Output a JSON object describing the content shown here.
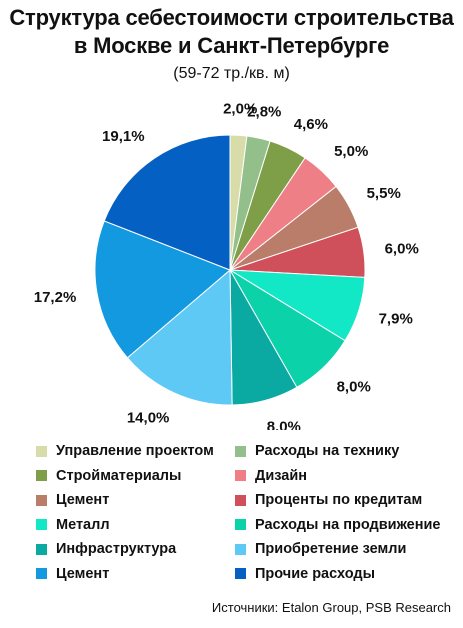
{
  "chart_data": {
    "type": "pie",
    "title_line1": "Структура себестоимости строительства",
    "title_line2": "в Москве и Санкт-Петербурге",
    "subtitle": "(59-72 тр./кв. м)",
    "slices": [
      {
        "label": "Управление проектом",
        "value": 2.0,
        "display": "2,0%",
        "color": "#d7dca8"
      },
      {
        "label": "Расходы на технику",
        "value": 2.8,
        "display": "2,8%",
        "color": "#93c08a"
      },
      {
        "label": "Стройматериалы",
        "value": 4.6,
        "display": "4,6%",
        "color": "#7e9e47"
      },
      {
        "label": "Дизайн",
        "value": 5.0,
        "display": "5,0%",
        "color": "#ee7f86"
      },
      {
        "label": "Цемент",
        "value": 5.5,
        "display": "5,5%",
        "color": "#b97d6a"
      },
      {
        "label": "Проценты по кредитам",
        "value": 6.0,
        "display": "6,0%",
        "color": "#cf4f5a"
      },
      {
        "label": "Металл",
        "value": 7.9,
        "display": "7,9%",
        "color": "#13e8c6"
      },
      {
        "label": "Расходы на продвижение",
        "value": 8.0,
        "display": "8,0%",
        "color": "#0bd2a9"
      },
      {
        "label": "Инфраструктура",
        "value": 8.0,
        "display": "8,0%",
        "color": "#0aaaa3"
      },
      {
        "label": "Приобретение земли",
        "value": 14.0,
        "display": "14,0%",
        "color": "#5fc9f5"
      },
      {
        "label": "Цемент",
        "value": 17.2,
        "display": "17,2%",
        "color": "#1299e0"
      },
      {
        "label": "Прочие расходы",
        "value": 19.1,
        "display": "19,1%",
        "color": "#0460c2"
      }
    ],
    "legend_placement": "bottom"
  },
  "source": "Источники: Etalon Group, PSB Research"
}
